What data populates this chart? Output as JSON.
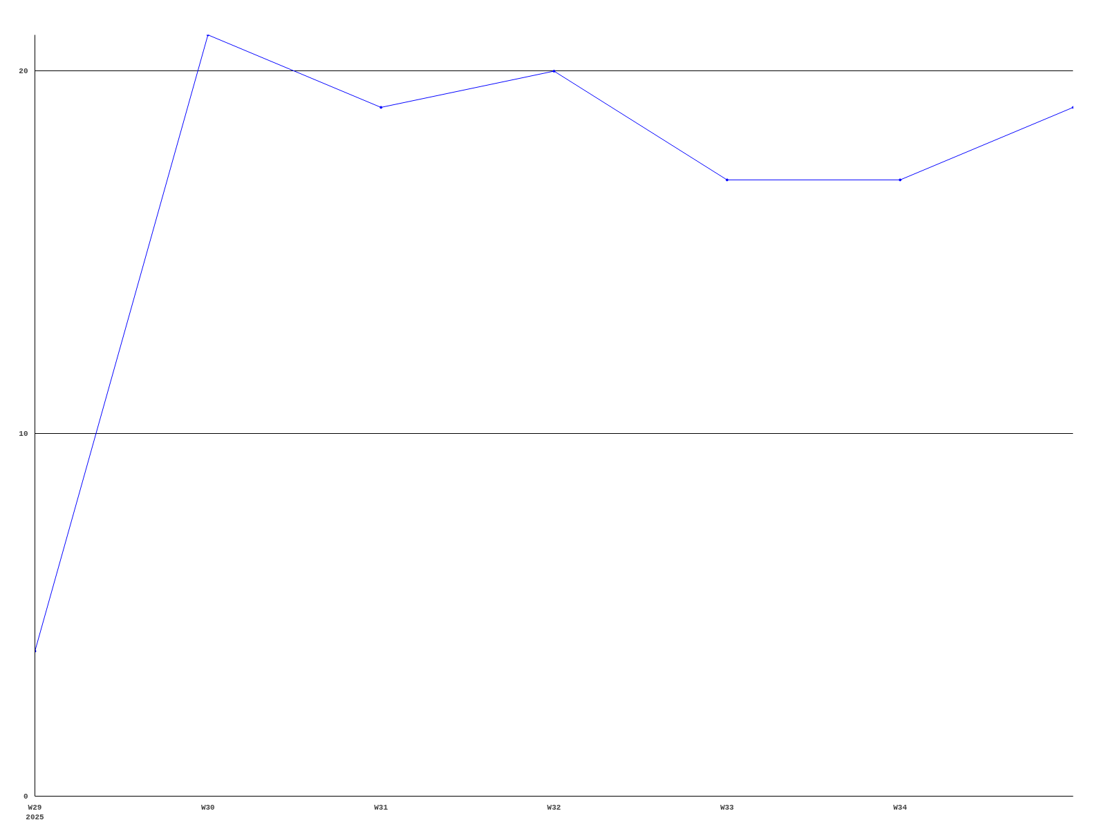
{
  "chart_data": {
    "type": "line",
    "categories": [
      "W29\n2025",
      "W30",
      "W31",
      "W32",
      "W33",
      "W34",
      null
    ],
    "series": [
      {
        "color": "#0000ff",
        "values": [
          4,
          21,
          19,
          20,
          17,
          17,
          19
        ]
      }
    ],
    "ylim": [
      0,
      21
    ],
    "yticks": [
      0,
      10,
      20
    ],
    "grid": "y",
    "marker": "circle",
    "line_style": "solid"
  }
}
